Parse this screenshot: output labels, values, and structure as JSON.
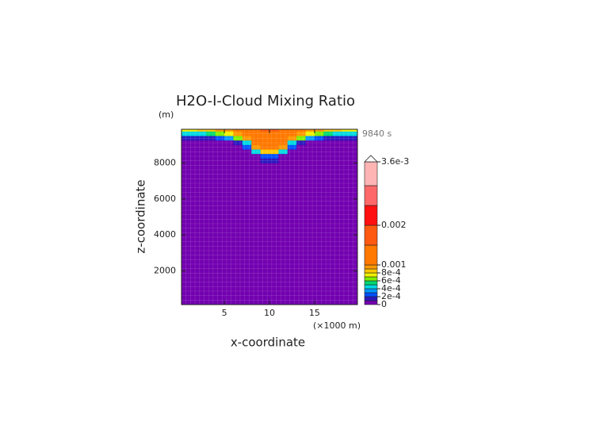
{
  "chart_data": {
    "type": "contour",
    "title": "H2O-I-Cloud Mixing Ratio",
    "y_unit": "(m)",
    "x_unit": "(×1000 m)",
    "time_label": "9840 s",
    "x_label": "x-coordinate",
    "y_label": "z-coordinate",
    "xlim": [
      0.25,
      19.75
    ],
    "xticks": [
      5,
      10,
      15
    ],
    "ylim": [
      125,
      9875
    ],
    "yticks": [
      2000,
      4000,
      6000,
      8000
    ],
    "x": [
      0.5,
      1.5,
      2.5,
      3.5,
      4.5,
      5.5,
      6.5,
      7.5,
      8.5,
      9.5,
      10.5,
      11.5,
      12.5,
      13.5,
      14.5,
      15.5,
      16.5,
      17.5,
      18.5,
      19.5
    ],
    "z": [
      9875,
      9625,
      9375,
      9125,
      8875,
      8625,
      8375,
      8125
    ],
    "values": [
      [
        0.0007,
        0.0007,
        0.0008,
        0.0008,
        0.0009,
        0.0009,
        0.001,
        0.0012,
        0.0014,
        0.0015,
        0.0015,
        0.0014,
        0.0012,
        0.001,
        0.0009,
        0.0009,
        0.0008,
        0.0008,
        0.0007,
        0.0007
      ],
      [
        0.0004,
        0.0004,
        0.0004,
        0.0005,
        0.0006,
        0.0007,
        0.0009,
        0.0011,
        0.0013,
        0.0014,
        0.0014,
        0.0013,
        0.0011,
        0.0009,
        0.0007,
        0.0006,
        0.0005,
        0.0004,
        0.0004,
        0.0004
      ],
      [
        0.0001,
        0.0001,
        0.0001,
        0.0001,
        0.0002,
        0.0003,
        0.0006,
        0.0009,
        0.0012,
        0.0013,
        0.0013,
        0.0012,
        0.0009,
        0.0006,
        0.0003,
        0.0002,
        0.0001,
        0.0001,
        0.0001,
        0.0001
      ],
      [
        0,
        0,
        0,
        0,
        0,
        0,
        0.0001,
        0.0004,
        0.0011,
        0.0012,
        0.0012,
        0.0011,
        0.0004,
        0.0001,
        0,
        0,
        0,
        0,
        0,
        0
      ],
      [
        0,
        0,
        0,
        0,
        0,
        0,
        0,
        0.0002,
        0.0009,
        0.0011,
        0.0011,
        0.0009,
        0.0002,
        0,
        0,
        0,
        0,
        0,
        0,
        0
      ],
      [
        0,
        0,
        0,
        0,
        0,
        0,
        0,
        0,
        0.0004,
        0.0008,
        0.0008,
        0.0004,
        0,
        0,
        0,
        0,
        0,
        0,
        0,
        0
      ],
      [
        0,
        0,
        0,
        0,
        0,
        0,
        0,
        0,
        0,
        0.0002,
        0.0002,
        0,
        0,
        0,
        0,
        0,
        0,
        0,
        0,
        0
      ],
      [
        0,
        0,
        0,
        0,
        0,
        0,
        0,
        0,
        0,
        0.0001,
        0.0001,
        0,
        0,
        0,
        0,
        0,
        0,
        0,
        0,
        0
      ]
    ],
    "levels": [
      0,
      0.0001,
      0.0002,
      0.0003,
      0.0004,
      0.0005,
      0.0006,
      0.0007,
      0.0008,
      0.0009,
      0.001,
      0.0015,
      0.002,
      0.0025,
      0.003,
      0.0036
    ],
    "colors": [
      "#7300b0",
      "#2a18c0",
      "#0050ff",
      "#0098ff",
      "#00d8e0",
      "#00d870",
      "#80ee00",
      "#f0f000",
      "#ffc800",
      "#ff9800",
      "#ff7800",
      "#ff5a10",
      "#ff1010",
      "#ff6868",
      "#ffb4b4"
    ],
    "colorbar_ticks": [
      0,
      {
        "value": 0.0002,
        "label": "2e-4"
      },
      {
        "value": 0.0004,
        "label": "4e-4"
      },
      {
        "value": 0.0006,
        "label": "6e-4"
      },
      {
        "value": 0.0008,
        "label": "8e-4"
      },
      0.001,
      0.002,
      {
        "value": 0.0036,
        "label": "3.6e-3"
      }
    ]
  }
}
